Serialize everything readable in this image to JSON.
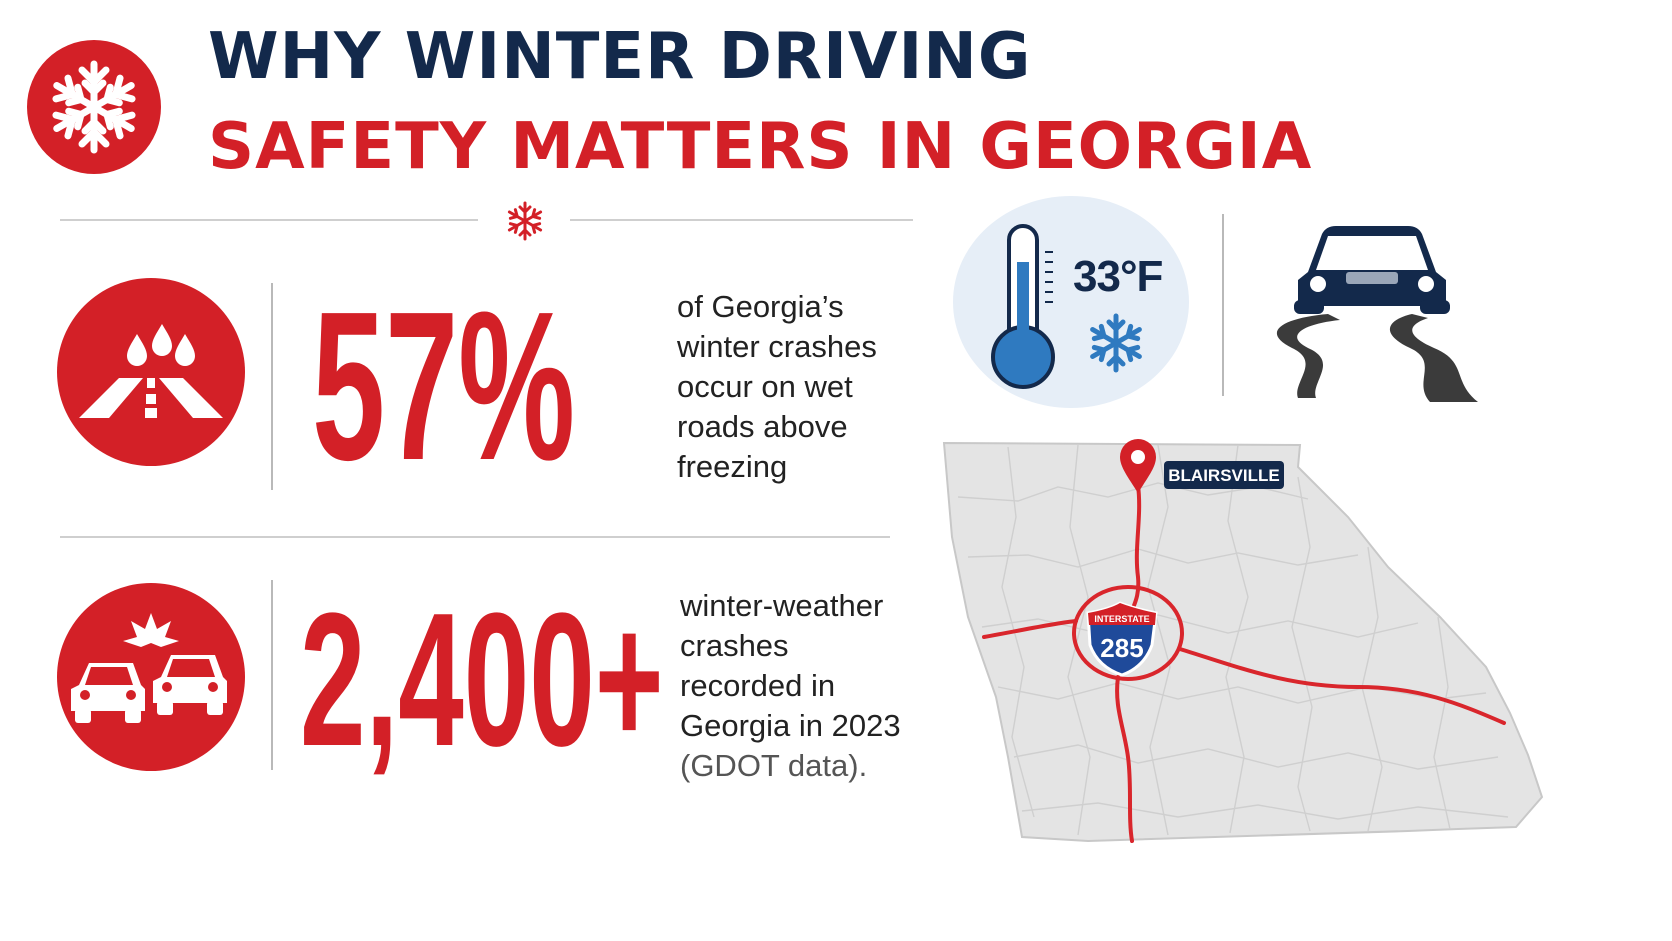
{
  "header": {
    "title_line1": "WHY WINTER DRIVING",
    "title_line2": "SAFETY MATTERS IN GEORGIA",
    "icon": "snowflake-icon"
  },
  "stats": [
    {
      "value": "57%",
      "description_lines": [
        "of Georgia’s",
        "winter crashes",
        "occur on wet",
        "roads above",
        "freezing"
      ],
      "icon": "wet-road-icon"
    },
    {
      "value": "2,400+",
      "description_lines": [
        "winter-weather",
        "crashes",
        "recorded in",
        "Georgia in 2023"
      ],
      "source": "(GDOT data).",
      "icon": "car-collision-icon"
    }
  ],
  "temperature": {
    "value": "33°F",
    "icon": "thermometer-icon"
  },
  "slippery_icon": "slippery-car-icon",
  "map": {
    "location_label": "BLAIRSVILLE",
    "shield_top": "INTERSTATE",
    "shield_number": "285"
  },
  "colors": {
    "red": "#d32027",
    "navy": "#13294b",
    "map_fill": "#e4e4e4",
    "thermo_blue": "#2f7ac0"
  }
}
